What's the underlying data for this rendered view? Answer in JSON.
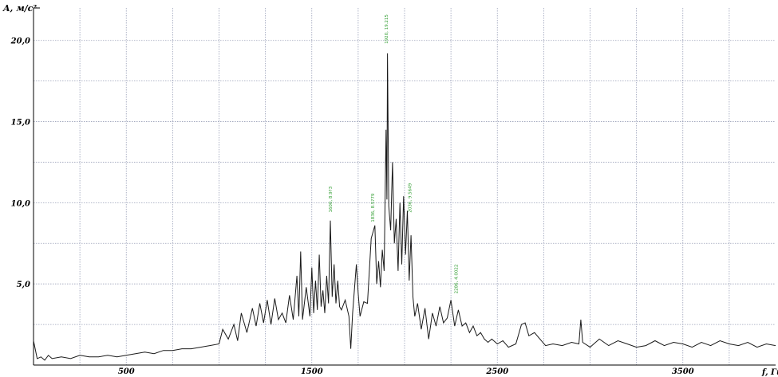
{
  "chart_data": {
    "type": "line",
    "xlabel": "f, Гц",
    "ylabel": "A, м/с²",
    "xlim": [
      0,
      4000
    ],
    "ylim": [
      0,
      22
    ],
    "x_ticks": [
      500,
      1500,
      2500,
      3500
    ],
    "x_tick_labels": [
      "500",
      "1500",
      "2500",
      "3500"
    ],
    "y_ticks": [
      5,
      10,
      15,
      20
    ],
    "y_tick_labels": [
      "5,0",
      "10,0",
      "15,0",
      "20,0"
    ],
    "grid": true,
    "colors": {
      "line": "#1a1a1a",
      "grid": "#9aa0b8",
      "annotation": "#2a9a2a"
    },
    "series": [
      {
        "points": [
          [
            0,
            1.5
          ],
          [
            20,
            0.4
          ],
          [
            40,
            0.5
          ],
          [
            60,
            0.3
          ],
          [
            80,
            0.6
          ],
          [
            100,
            0.4
          ],
          [
            150,
            0.5
          ],
          [
            200,
            0.4
          ],
          [
            250,
            0.6
          ],
          [
            300,
            0.5
          ],
          [
            350,
            0.5
          ],
          [
            400,
            0.6
          ],
          [
            450,
            0.5
          ],
          [
            500,
            0.6
          ],
          [
            550,
            0.7
          ],
          [
            600,
            0.8
          ],
          [
            650,
            0.7
          ],
          [
            700,
            0.9
          ],
          [
            750,
            0.9
          ],
          [
            800,
            1.0
          ],
          [
            850,
            1.0
          ],
          [
            900,
            1.1
          ],
          [
            950,
            1.2
          ],
          [
            1000,
            1.3
          ],
          [
            1020,
            2.2
          ],
          [
            1050,
            1.6
          ],
          [
            1080,
            2.5
          ],
          [
            1100,
            1.5
          ],
          [
            1120,
            3.2
          ],
          [
            1150,
            2.0
          ],
          [
            1180,
            3.5
          ],
          [
            1200,
            2.4
          ],
          [
            1220,
            3.8
          ],
          [
            1240,
            2.6
          ],
          [
            1260,
            4.0
          ],
          [
            1280,
            2.5
          ],
          [
            1300,
            4.1
          ],
          [
            1320,
            2.8
          ],
          [
            1340,
            3.2
          ],
          [
            1360,
            2.6
          ],
          [
            1380,
            4.3
          ],
          [
            1400,
            2.8
          ],
          [
            1420,
            5.5
          ],
          [
            1430,
            3.0
          ],
          [
            1440,
            7.0
          ],
          [
            1450,
            2.8
          ],
          [
            1470,
            4.8
          ],
          [
            1490,
            3.0
          ],
          [
            1500,
            6.0
          ],
          [
            1510,
            3.2
          ],
          [
            1520,
            5.2
          ],
          [
            1530,
            3.4
          ],
          [
            1540,
            6.8
          ],
          [
            1550,
            3.6
          ],
          [
            1560,
            4.6
          ],
          [
            1570,
            3.2
          ],
          [
            1580,
            5.5
          ],
          [
            1590,
            3.8
          ],
          [
            1600,
            8.9
          ],
          [
            1610,
            4.2
          ],
          [
            1620,
            6.2
          ],
          [
            1630,
            3.8
          ],
          [
            1640,
            5.2
          ],
          [
            1650,
            3.6
          ],
          [
            1660,
            3.4
          ],
          [
            1680,
            4.0
          ],
          [
            1700,
            3.0
          ],
          [
            1710,
            1.0
          ],
          [
            1720,
            3.2
          ],
          [
            1740,
            6.2
          ],
          [
            1750,
            4.4
          ],
          [
            1760,
            3.0
          ],
          [
            1780,
            3.9
          ],
          [
            1800,
            3.8
          ],
          [
            1820,
            7.8
          ],
          [
            1840,
            8.6
          ],
          [
            1850,
            5.0
          ],
          [
            1860,
            6.4
          ],
          [
            1870,
            4.8
          ],
          [
            1880,
            7.1
          ],
          [
            1890,
            5.8
          ],
          [
            1900,
            14.5
          ],
          [
            1905,
            10.2
          ],
          [
            1908,
            19.2
          ],
          [
            1915,
            9.8
          ],
          [
            1925,
            8.3
          ],
          [
            1935,
            12.5
          ],
          [
            1945,
            7.5
          ],
          [
            1955,
            9.0
          ],
          [
            1965,
            5.8
          ],
          [
            1975,
            10.0
          ],
          [
            1985,
            6.2
          ],
          [
            1995,
            10.4
          ],
          [
            2005,
            6.8
          ],
          [
            2015,
            9.5
          ],
          [
            2025,
            5.2
          ],
          [
            2035,
            8.0
          ],
          [
            2045,
            4.2
          ],
          [
            2055,
            3.0
          ],
          [
            2070,
            3.8
          ],
          [
            2090,
            2.2
          ],
          [
            2110,
            3.5
          ],
          [
            2130,
            1.6
          ],
          [
            2150,
            3.2
          ],
          [
            2170,
            2.4
          ],
          [
            2190,
            3.6
          ],
          [
            2210,
            2.6
          ],
          [
            2230,
            2.9
          ],
          [
            2250,
            4.0
          ],
          [
            2270,
            2.4
          ],
          [
            2290,
            3.4
          ],
          [
            2310,
            2.4
          ],
          [
            2330,
            2.6
          ],
          [
            2350,
            2.0
          ],
          [
            2370,
            2.4
          ],
          [
            2390,
            1.8
          ],
          [
            2410,
            2.0
          ],
          [
            2430,
            1.6
          ],
          [
            2450,
            1.4
          ],
          [
            2470,
            1.6
          ],
          [
            2500,
            1.3
          ],
          [
            2530,
            1.5
          ],
          [
            2560,
            1.1
          ],
          [
            2600,
            1.3
          ],
          [
            2630,
            2.5
          ],
          [
            2650,
            2.6
          ],
          [
            2670,
            1.8
          ],
          [
            2700,
            2.0
          ],
          [
            2730,
            1.6
          ],
          [
            2760,
            1.2
          ],
          [
            2800,
            1.3
          ],
          [
            2850,
            1.2
          ],
          [
            2900,
            1.4
          ],
          [
            2940,
            1.3
          ],
          [
            2950,
            2.8
          ],
          [
            2960,
            1.4
          ],
          [
            3000,
            1.1
          ],
          [
            3050,
            1.6
          ],
          [
            3100,
            1.2
          ],
          [
            3150,
            1.5
          ],
          [
            3200,
            1.3
          ],
          [
            3250,
            1.1
          ],
          [
            3300,
            1.2
          ],
          [
            3350,
            1.5
          ],
          [
            3400,
            1.2
          ],
          [
            3450,
            1.4
          ],
          [
            3500,
            1.3
          ],
          [
            3550,
            1.1
          ],
          [
            3600,
            1.4
          ],
          [
            3650,
            1.2
          ],
          [
            3700,
            1.5
          ],
          [
            3750,
            1.3
          ],
          [
            3800,
            1.2
          ],
          [
            3850,
            1.4
          ],
          [
            3900,
            1.1
          ],
          [
            3950,
            1.3
          ],
          [
            4000,
            1.2
          ]
        ]
      }
    ],
    "annotations": [
      {
        "x": 1608,
        "y": 9.4,
        "text": "1600, 8.9?3"
      },
      {
        "x": 1910,
        "y": 19.8,
        "text": "1920, 19.215"
      },
      {
        "x": 1836,
        "y": 8.8,
        "text": "1836, 8.5?79"
      },
      {
        "x": 2036,
        "y": 9.4,
        "text": "2036, 9.5649"
      },
      {
        "x": 2286,
        "y": 4.4,
        "text": "2286, 4.0022"
      }
    ]
  }
}
